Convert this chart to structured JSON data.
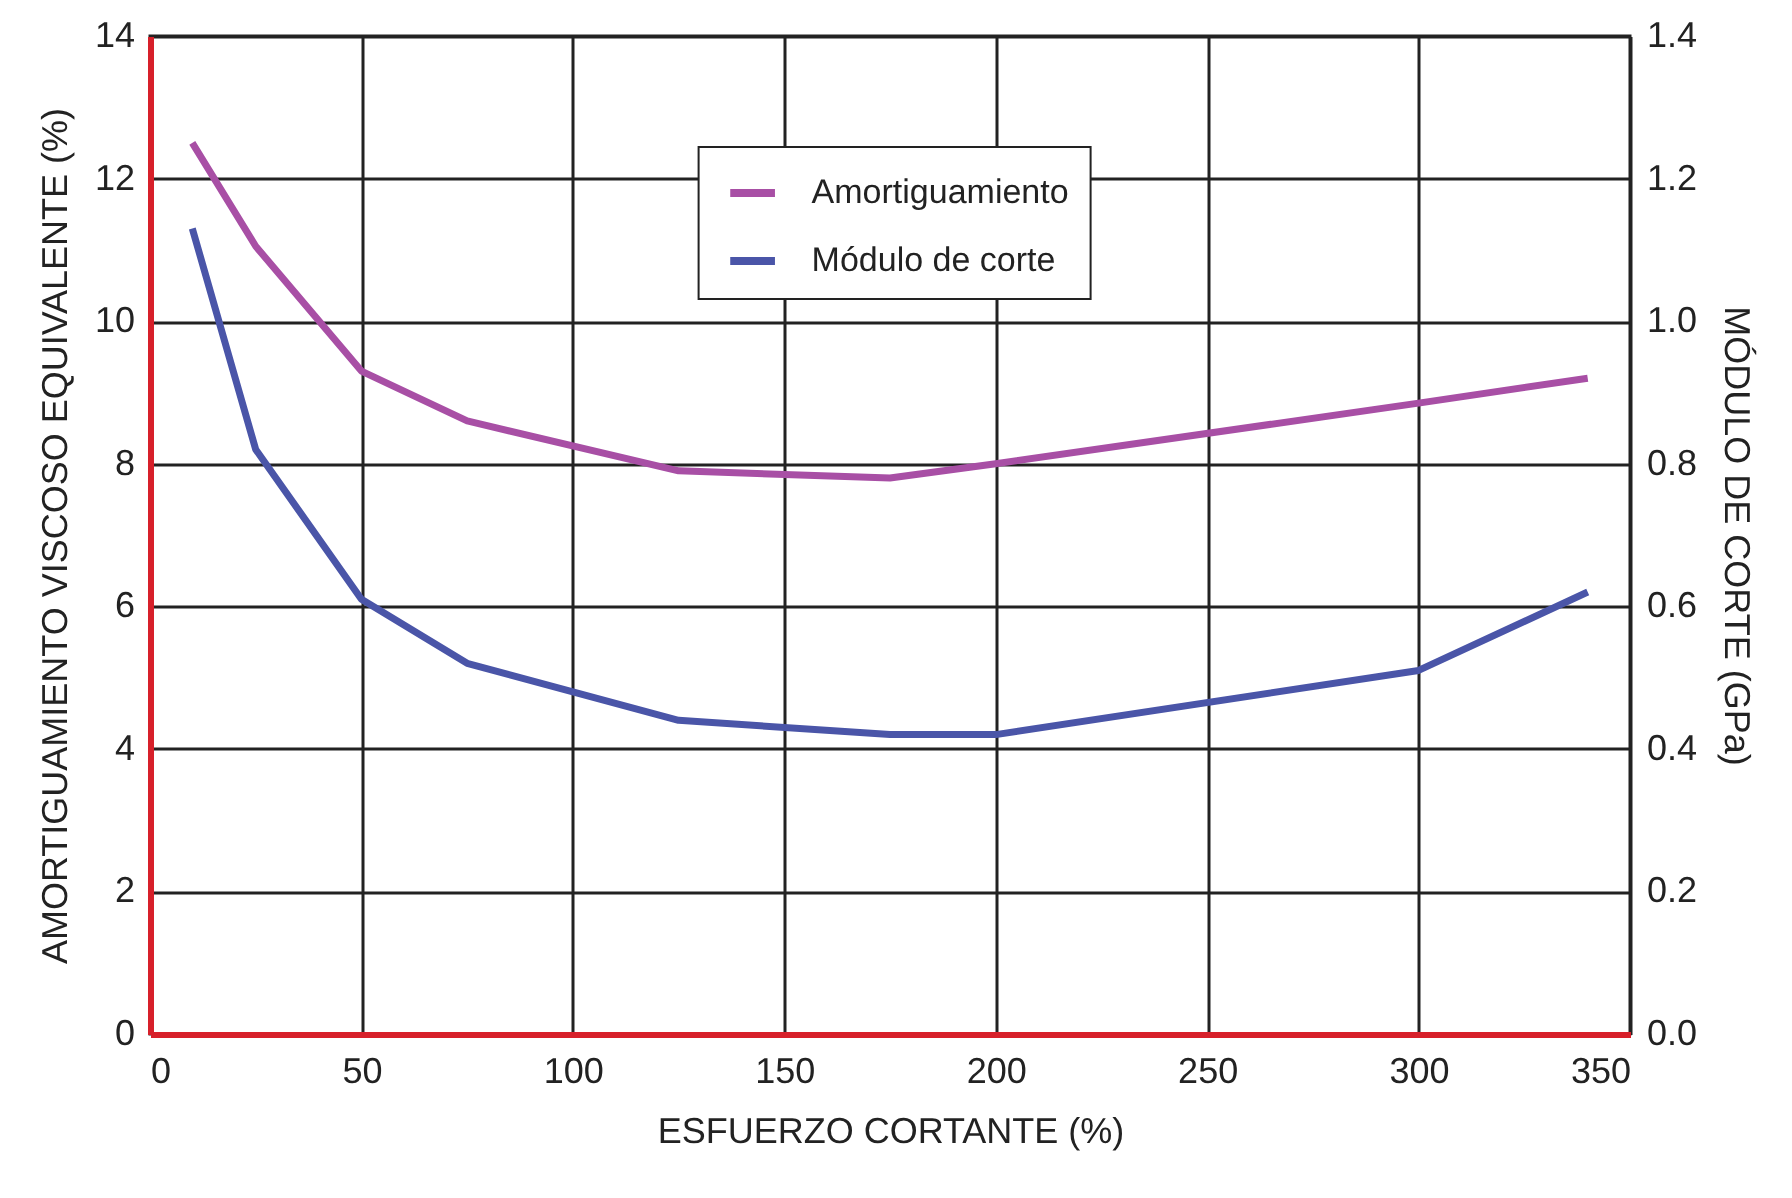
{
  "chart_data": {
    "type": "line",
    "xlabel": "ESFUERZO CORTANTE (%)",
    "ylabel": "AMORTIGUAMIENTO VISCOSO EQUIVALENTE (%)",
    "y2label": "MÓDULO DE CORTE (GPa)",
    "series": [
      {
        "name": "Amortiguamiento",
        "color": "#a84fa5",
        "x": [
          10,
          25,
          50,
          75,
          125,
          175,
          200,
          300,
          340
        ],
        "values": [
          12.5,
          11.05,
          9.3,
          8.6,
          7.9,
          7.8,
          8.0,
          8.85,
          9.2
        ]
      },
      {
        "name": "Módulo de corte",
        "color": "#4a55a8",
        "axis": "y2",
        "x": [
          10,
          25,
          50,
          75,
          125,
          175,
          200,
          300,
          340
        ],
        "values": [
          1.13,
          0.82,
          0.61,
          0.52,
          0.44,
          0.42,
          0.42,
          0.51,
          0.62
        ]
      }
    ],
    "xlim": [
      0,
      350
    ],
    "xticks": [
      0,
      50,
      100,
      150,
      200,
      250,
      300,
      350
    ],
    "ylim": [
      0,
      14
    ],
    "yticks": [
      0,
      2,
      4,
      6,
      8,
      10,
      12,
      14
    ],
    "y2lim": [
      0,
      1.4
    ],
    "y2ticks": [
      {
        "value": 0,
        "label": "0.0"
      },
      {
        "value": 0.2,
        "label": "0.2"
      },
      {
        "value": 0.4,
        "label": "0.4"
      },
      {
        "value": 0.6,
        "label": "0.6"
      },
      {
        "value": 0.8,
        "label": "0.8"
      },
      {
        "value": 1.0,
        "label": "1.0"
      },
      {
        "value": 1.2,
        "label": "1.2"
      },
      {
        "value": 1.4,
        "label": "1.4"
      }
    ],
    "grid": true,
    "legend": "top",
    "line_style": "solid",
    "marker": "none"
  }
}
